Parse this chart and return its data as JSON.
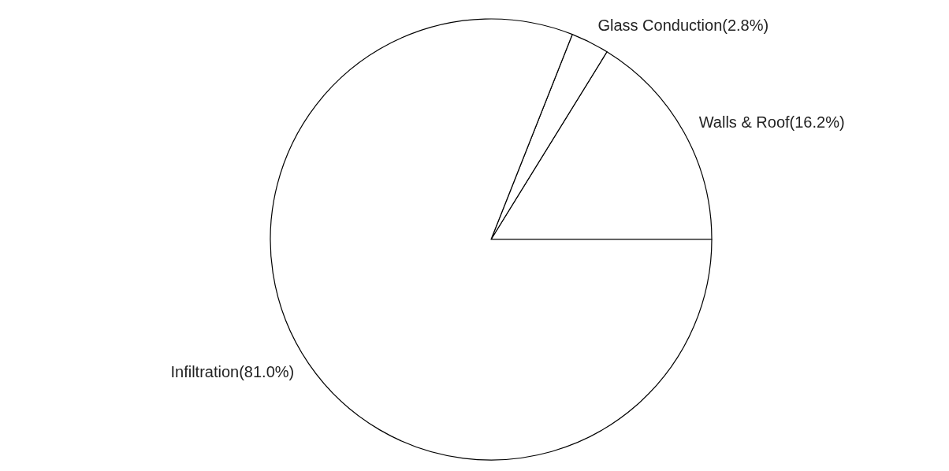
{
  "chart_data": {
    "type": "pie",
    "categories": [
      "Walls & Roof(16.2%)",
      "Glass Conduction(2.8%)",
      "Infiltration(81.0%)"
    ],
    "values": [
      16.2,
      2.8,
      81.0
    ],
    "colors": [
      "#ffffff",
      "#ffffff",
      "#ffffff"
    ]
  }
}
